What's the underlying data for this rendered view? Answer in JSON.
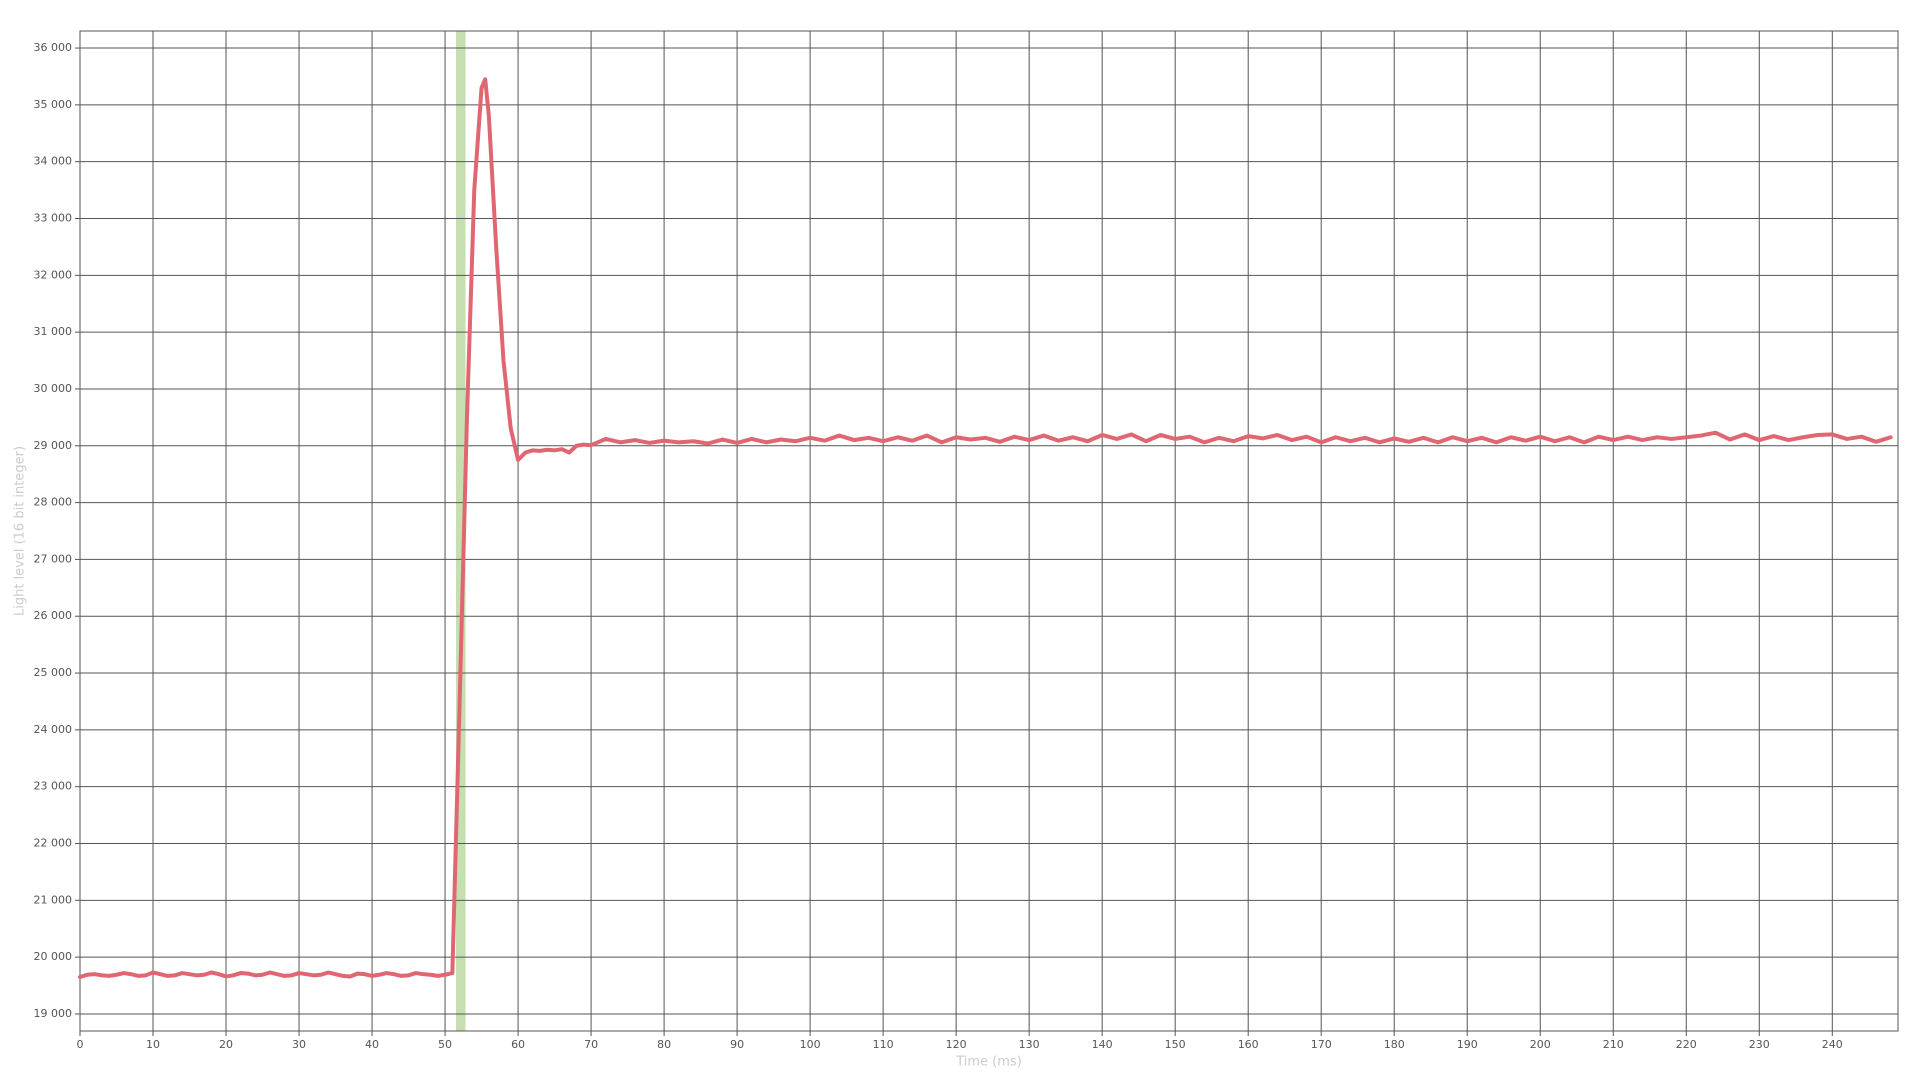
{
  "chart_data": {
    "type": "line",
    "xlabel": "Time (ms)",
    "ylabel": "Light level (16 bit integer)",
    "xlim": [
      0,
      249
    ],
    "ylim": [
      18700,
      36300
    ],
    "xticks": [
      0,
      10,
      20,
      30,
      40,
      50,
      60,
      70,
      80,
      90,
      100,
      110,
      120,
      130,
      140,
      150,
      160,
      170,
      180,
      190,
      200,
      210,
      220,
      230,
      240
    ],
    "yticks": [
      {
        "value": 19000,
        "label": "19 000"
      },
      {
        "value": 20000,
        "label": "20 000"
      },
      {
        "value": 21000,
        "label": "21 000"
      },
      {
        "value": 22000,
        "label": "22 000"
      },
      {
        "value": 23000,
        "label": "23 000"
      },
      {
        "value": 24000,
        "label": "24 000"
      },
      {
        "value": 25000,
        "label": "25 000"
      },
      {
        "value": 26000,
        "label": "26 000"
      },
      {
        "value": 27000,
        "label": "27 000"
      },
      {
        "value": 28000,
        "label": "28 000"
      },
      {
        "value": 29000,
        "label": "29 000"
      },
      {
        "value": 30000,
        "label": "30 000"
      },
      {
        "value": 31000,
        "label": "31 000"
      },
      {
        "value": 32000,
        "label": "32 000"
      },
      {
        "value": 33000,
        "label": "33 000"
      },
      {
        "value": 34000,
        "label": "34 000"
      },
      {
        "value": 35000,
        "label": "35 000"
      },
      {
        "value": 36000,
        "label": "36 000"
      }
    ],
    "grid": true,
    "highlight_range": [
      51.5,
      52.8
    ],
    "highlight_color": "#c5dfb0",
    "x": [
      0,
      1,
      2,
      3,
      4,
      5,
      6,
      7,
      8,
      9,
      10,
      11,
      12,
      13,
      14,
      15,
      16,
      17,
      18,
      19,
      20,
      21,
      22,
      23,
      24,
      25,
      26,
      27,
      28,
      29,
      30,
      31,
      32,
      33,
      34,
      35,
      36,
      37,
      38,
      39,
      40,
      41,
      42,
      43,
      44,
      45,
      46,
      47,
      48,
      49,
      50,
      51,
      52,
      53,
      54,
      55,
      55.5,
      56,
      57,
      58,
      59,
      60,
      61,
      62,
      63,
      64,
      65,
      66,
      67,
      68,
      69,
      70,
      72,
      74,
      76,
      78,
      80,
      82,
      84,
      86,
      88,
      90,
      92,
      94,
      96,
      98,
      100,
      102,
      104,
      106,
      108,
      110,
      112,
      114,
      116,
      118,
      120,
      122,
      124,
      126,
      128,
      130,
      132,
      134,
      136,
      138,
      140,
      142,
      144,
      146,
      148,
      150,
      152,
      154,
      156,
      158,
      160,
      162,
      164,
      166,
      168,
      170,
      172,
      174,
      176,
      178,
      180,
      182,
      184,
      186,
      188,
      190,
      192,
      194,
      196,
      198,
      200,
      202,
      204,
      206,
      208,
      210,
      212,
      214,
      216,
      218,
      220,
      222,
      224,
      226,
      228,
      230,
      232,
      234,
      236,
      238,
      240,
      242,
      244,
      246,
      248
    ],
    "series": [
      {
        "color": "#e06672",
        "values": [
          19650,
          19690,
          19700,
          19680,
          19670,
          19690,
          19720,
          19700,
          19670,
          19680,
          19730,
          19700,
          19670,
          19680,
          19720,
          19700,
          19680,
          19690,
          19730,
          19700,
          19660,
          19680,
          19720,
          19710,
          19680,
          19690,
          19730,
          19700,
          19670,
          19680,
          19720,
          19700,
          19680,
          19690,
          19730,
          19700,
          19670,
          19660,
          19710,
          19700,
          19670,
          19690,
          19720,
          19700,
          19670,
          19680,
          19720,
          19700,
          19690,
          19670,
          19690,
          19720,
          24500,
          29500,
          33500,
          35300,
          35450,
          34800,
          32500,
          30500,
          29300,
          28750,
          28880,
          28920,
          28910,
          28930,
          28920,
          28940,
          28880,
          29000,
          29020,
          29010,
          29120,
          29060,
          29100,
          29050,
          29090,
          29060,
          29080,
          29040,
          29110,
          29050,
          29120,
          29060,
          29110,
          29080,
          29140,
          29090,
          29180,
          29100,
          29140,
          29080,
          29150,
          29090,
          29180,
          29060,
          29150,
          29110,
          29140,
          29070,
          29160,
          29100,
          29180,
          29090,
          29150,
          29080,
          29190,
          29120,
          29200,
          29080,
          29190,
          29120,
          29160,
          29060,
          29140,
          29080,
          29170,
          29130,
          29190,
          29100,
          29160,
          29060,
          29150,
          29080,
          29140,
          29060,
          29130,
          29070,
          29140,
          29060,
          29150,
          29080,
          29140,
          29060,
          29150,
          29090,
          29160,
          29080,
          29150,
          29060,
          29160,
          29100,
          29160,
          29100,
          29150,
          29120,
          29150,
          29180,
          29230,
          29110,
          29200,
          29100,
          29170,
          29100,
          29150,
          29190,
          29200,
          29120,
          29160,
          29070,
          29150
        ]
      }
    ]
  }
}
